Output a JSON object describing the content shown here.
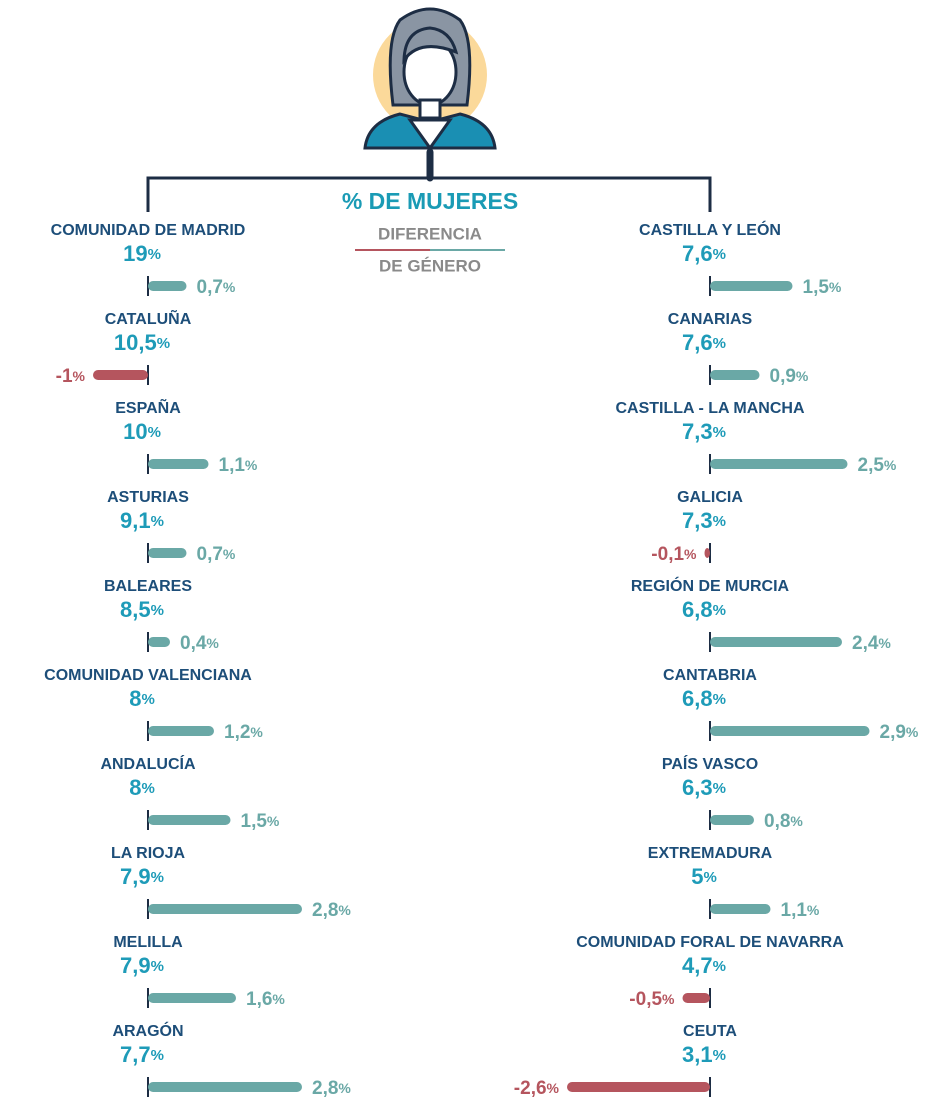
{
  "header": {
    "title": "% DE MUJERES",
    "legend_top": "DIFERENCIA",
    "legend_bottom": "DE GÉNERO"
  },
  "unit": "%",
  "left": [
    {
      "name": "COMUNIDAD DE MADRID",
      "women": "19",
      "diff": 0.7,
      "diff_label": "0,7"
    },
    {
      "name": "CATALUÑA",
      "women": "10,5",
      "diff": -1,
      "diff_label": "-1"
    },
    {
      "name": "ESPAÑA",
      "women": "10",
      "diff": 1.1,
      "diff_label": "1,1"
    },
    {
      "name": "ASTURIAS",
      "women": "9,1",
      "diff": 0.7,
      "diff_label": "0,7"
    },
    {
      "name": "BALEARES",
      "women": "8,5",
      "diff": 0.4,
      "diff_label": "0,4"
    },
    {
      "name": "COMUNIDAD VALENCIANA",
      "women": "8",
      "diff": 1.2,
      "diff_label": "1,2"
    },
    {
      "name": "ANDALUCÍA",
      "women": "8",
      "diff": 1.5,
      "diff_label": "1,5"
    },
    {
      "name": "LA RIOJA",
      "women": "7,9",
      "diff": 2.8,
      "diff_label": "2,8"
    },
    {
      "name": "MELILLA",
      "women": "7,9",
      "diff": 1.6,
      "diff_label": "1,6"
    },
    {
      "name": "ARAGÓN",
      "women": "7,7",
      "diff": 2.8,
      "diff_label": "2,8"
    }
  ],
  "right": [
    {
      "name": "CASTILLA Y LEÓN",
      "women": "7,6",
      "diff": 1.5,
      "diff_label": "1,5"
    },
    {
      "name": "CANARIAS",
      "women": "7,6",
      "diff": 0.9,
      "diff_label": "0,9"
    },
    {
      "name": "CASTILLA - LA MANCHA",
      "women": "7,3",
      "diff": 2.5,
      "diff_label": "2,5"
    },
    {
      "name": "GALICIA",
      "women": "7,3",
      "diff": -0.1,
      "diff_label": "-0,1"
    },
    {
      "name": "REGIÓN DE MURCIA",
      "women": "6,8",
      "diff": 2.4,
      "diff_label": "2,4"
    },
    {
      "name": "CANTABRIA",
      "women": "6,8",
      "diff": 2.9,
      "diff_label": "2,9"
    },
    {
      "name": "PAÍS VASCO",
      "women": "6,3",
      "diff": 0.8,
      "diff_label": "0,8"
    },
    {
      "name": "EXTREMADURA",
      "women": "5",
      "diff": 1.1,
      "diff_label": "1,1"
    },
    {
      "name": "COMUNIDAD FORAL DE NAVARRA",
      "women": "4,7",
      "diff": -0.5,
      "diff_label": "-0,5"
    },
    {
      "name": "CEUTA",
      "women": "3,1",
      "diff": -2.6,
      "diff_label": "-2,6"
    }
  ]
}
